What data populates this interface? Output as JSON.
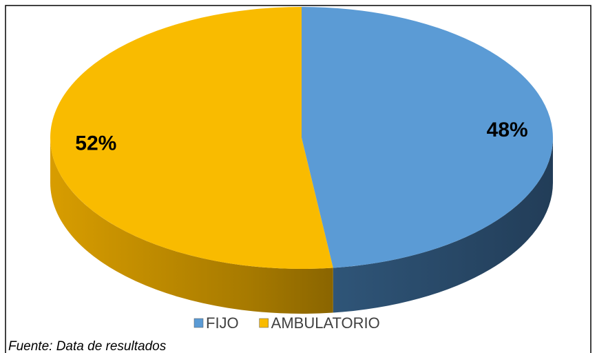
{
  "chart_data": {
    "type": "pie",
    "categories": [
      "FIJO",
      "AMBULATORIO"
    ],
    "values": [
      48,
      52
    ],
    "value_labels": [
      "48%",
      "52%"
    ],
    "colors": [
      "#5b9bd5",
      "#f9bb00"
    ],
    "legend": "bottom",
    "source": "Fuente: Data de resultados"
  }
}
